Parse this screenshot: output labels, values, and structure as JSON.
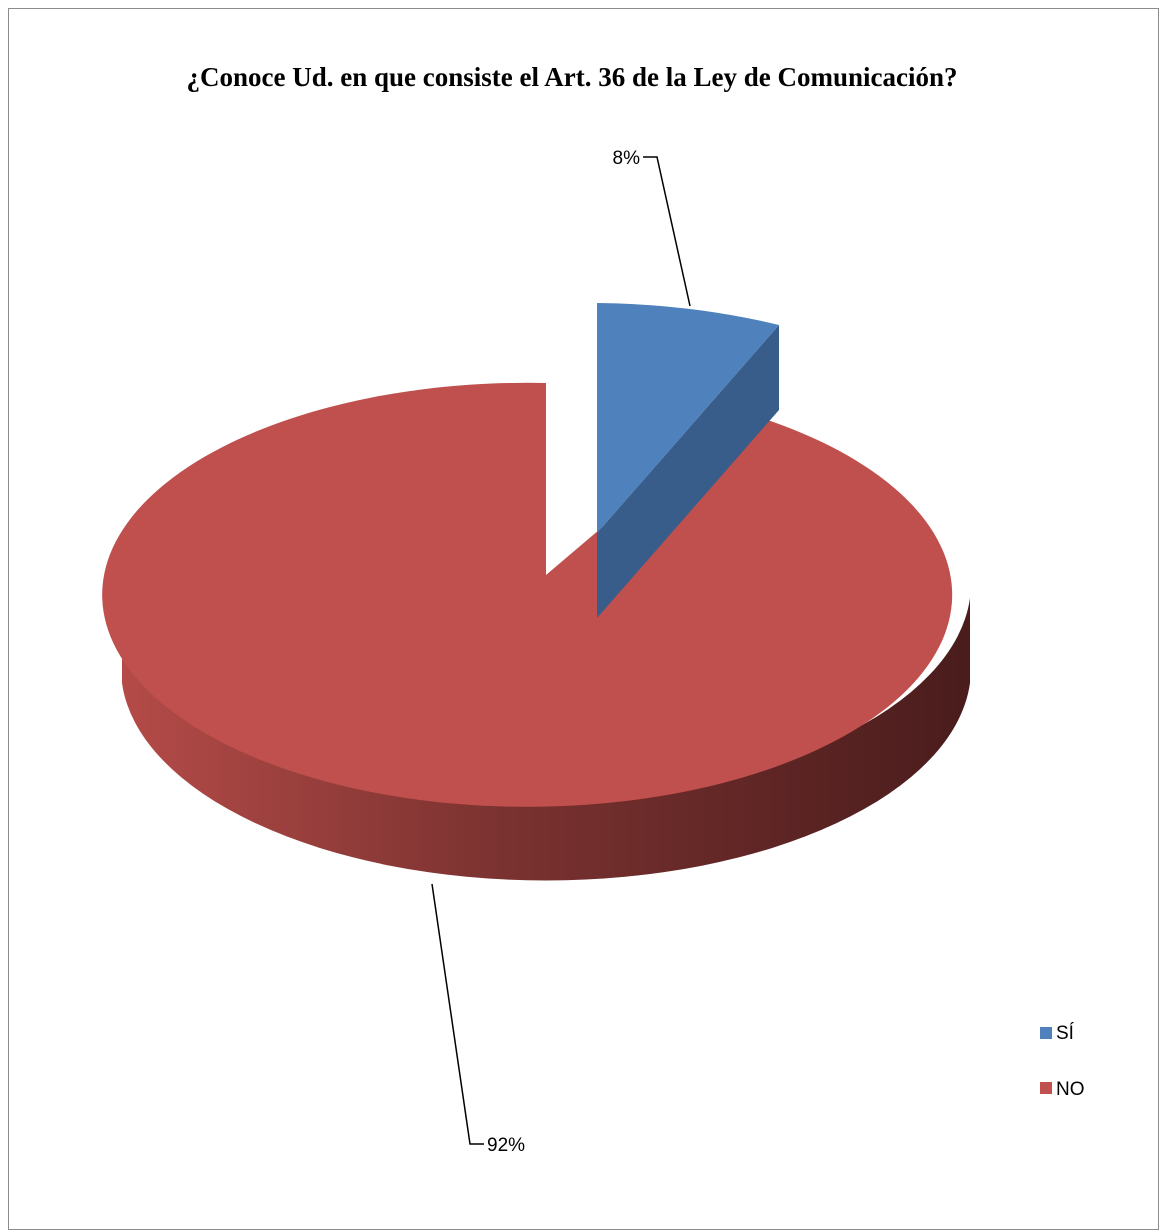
{
  "chart_data": {
    "type": "pie",
    "title": "¿Conoce Ud. en que consiste el Art. 36 de la Ley de Comunicación?",
    "categories": [
      "SÍ",
      "NO"
    ],
    "values": [
      8,
      92
    ],
    "data_labels": [
      "8%",
      "92%"
    ],
    "colors": [
      "#4f81bd",
      "#c0504d"
    ],
    "side_colors": [
      "#385d8a",
      "#8c3a37"
    ],
    "legend_position": "right",
    "style": "3d-exploded"
  }
}
